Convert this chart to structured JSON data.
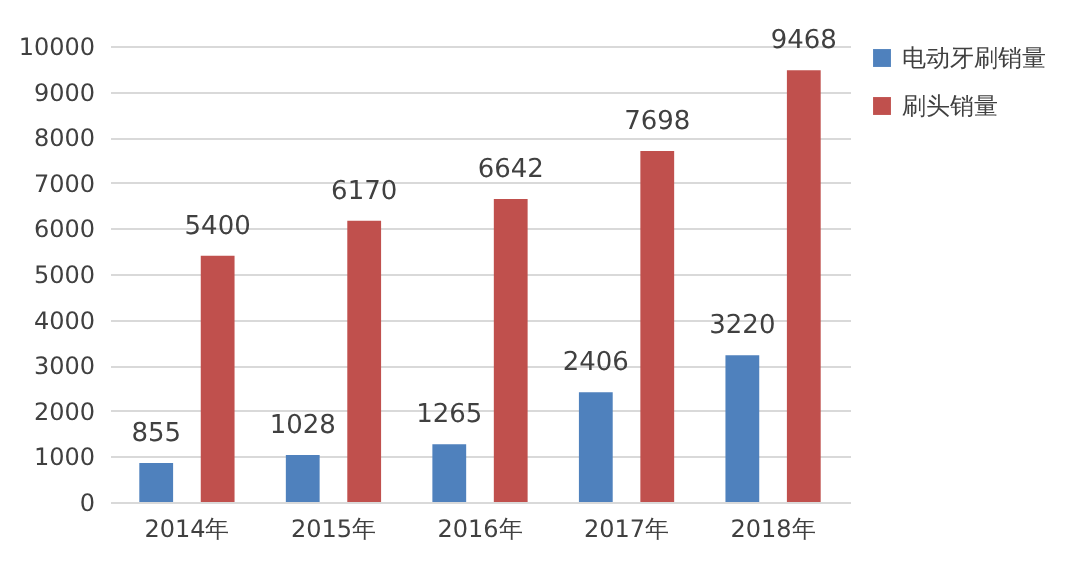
{
  "chart_data": {
    "type": "bar",
    "categories": [
      "2014年",
      "2015年",
      "2016年",
      "2017年",
      "2018年"
    ],
    "series": [
      {
        "name": "电动牙刷销量",
        "color": "#4f81bd",
        "values": [
          855,
          1028,
          1265,
          2406,
          3220
        ]
      },
      {
        "name": "刷头销量",
        "color": "#c0504d",
        "values": [
          5400,
          6170,
          6642,
          7698,
          9468
        ]
      }
    ],
    "ylim": [
      0,
      10000
    ],
    "yticks": [
      0,
      1000,
      2000,
      3000,
      4000,
      5000,
      6000,
      7000,
      8000,
      9000,
      10000
    ],
    "grid": "y",
    "legend": "right",
    "data_labels": true
  }
}
